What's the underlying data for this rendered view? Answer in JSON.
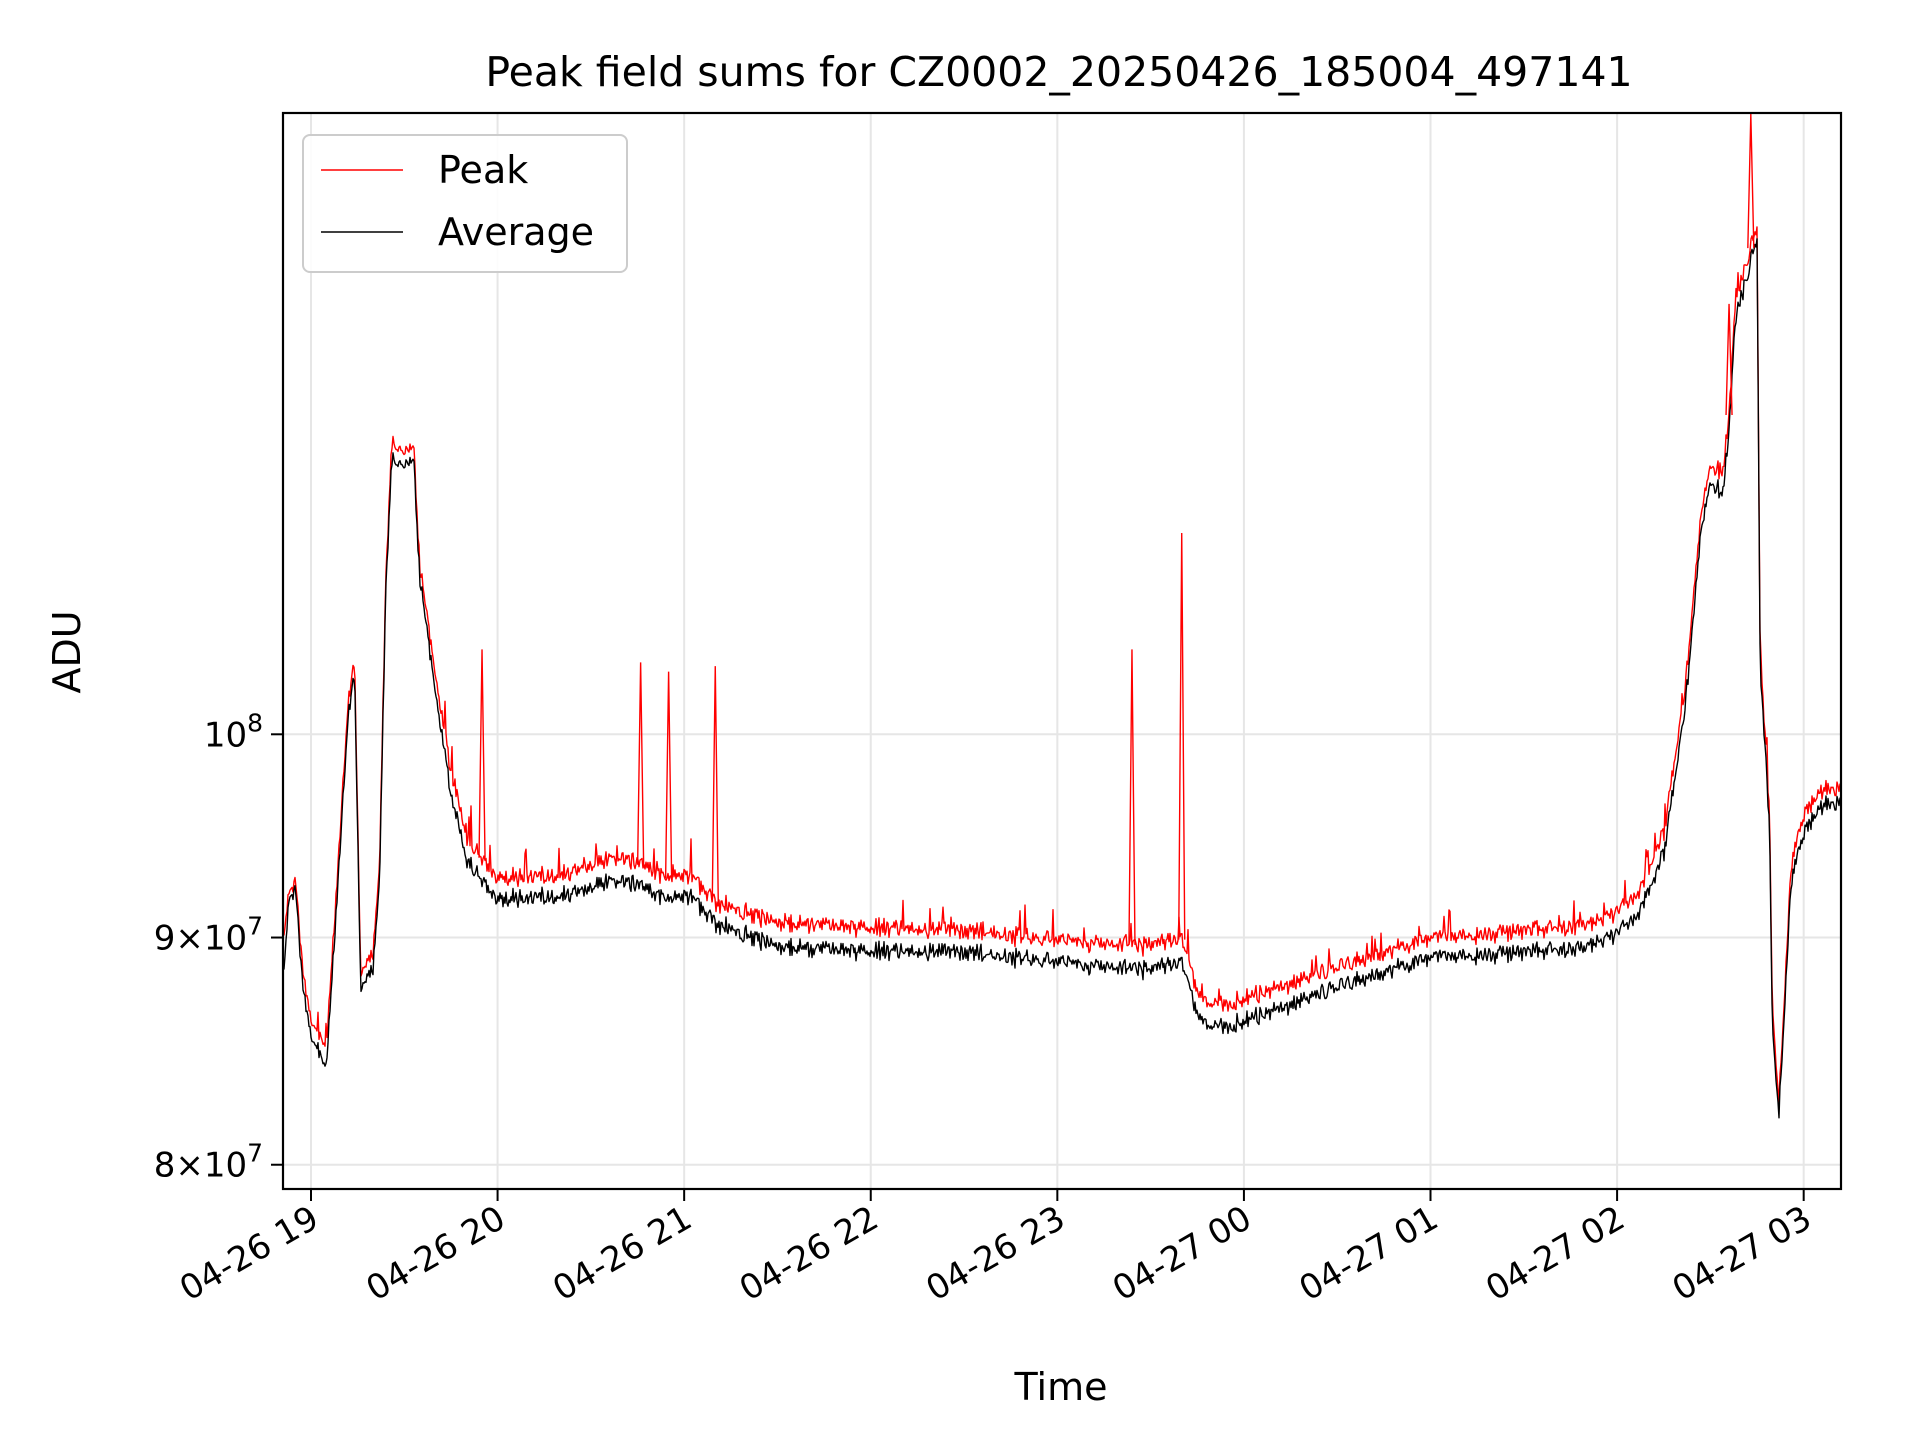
{
  "chart_data": {
    "type": "line",
    "title": "Peak field sums for CZ0002_20250426_185004_497141",
    "xlabel": "Time",
    "ylabel": "ADU",
    "yscale": "log",
    "ylim": [
      79000000,
      138000000
    ],
    "xlim": [
      "2025-04-26 18:51",
      "2025-04-27 03:12"
    ],
    "grid": true,
    "legend_position": "upper left",
    "x_ticks": [
      {
        "t": "2025-04-26 19:00",
        "label": "04-26 19"
      },
      {
        "t": "2025-04-26 20:00",
        "label": "04-26 20"
      },
      {
        "t": "2025-04-26 21:00",
        "label": "04-26 21"
      },
      {
        "t": "2025-04-26 22:00",
        "label": "04-26 22"
      },
      {
        "t": "2025-04-26 23:00",
        "label": "04-26 23"
      },
      {
        "t": "2025-04-27 00:00",
        "label": "04-27 00"
      },
      {
        "t": "2025-04-27 01:00",
        "label": "04-27 01"
      },
      {
        "t": "2025-04-27 02:00",
        "label": "04-27 02"
      },
      {
        "t": "2025-04-27 03:00",
        "label": "04-27 03"
      }
    ],
    "y_ticks": [
      {
        "value": 80000000,
        "base": "8×10",
        "exp": "7"
      },
      {
        "value": 90000000,
        "base": "9×10",
        "exp": "7"
      },
      {
        "value": 100000000,
        "base": "10",
        "exp": "8"
      }
    ],
    "series": [
      {
        "name": "Peak",
        "color": "#ff0000",
        "points": [
          [
            "2025-04-26 18:51",
            89800000
          ],
          [
            "2025-04-26 18:53",
            92300000
          ],
          [
            "2025-04-26 18:55",
            92700000
          ],
          [
            "2025-04-26 18:57",
            89000000
          ],
          [
            "2025-04-26 19:00",
            86200000
          ],
          [
            "2025-04-26 19:05",
            85200000
          ],
          [
            "2025-04-26 19:08",
            91800000
          ],
          [
            "2025-04-26 19:12",
            101900000
          ],
          [
            "2025-04-26 19:14",
            104000000
          ],
          [
            "2025-04-26 19:16",
            88200000
          ],
          [
            "2025-04-26 19:20",
            89200000
          ],
          [
            "2025-04-26 19:22",
            93200000
          ],
          [
            "2025-04-26 19:24",
            108100000
          ],
          [
            "2025-04-26 19:26",
            116500000
          ],
          [
            "2025-04-26 19:30",
            115800000
          ],
          [
            "2025-04-26 19:33",
            116100000
          ],
          [
            "2025-04-26 19:35",
            109100000
          ],
          [
            "2025-04-26 19:40",
            103100000
          ],
          [
            "2025-04-26 19:45",
            98200000
          ],
          [
            "2025-04-26 19:50",
            94800000
          ],
          [
            "2025-04-26 20:00",
            92800000
          ],
          [
            "2025-04-26 20:20",
            93000000
          ],
          [
            "2025-04-26 20:40",
            93900000
          ],
          [
            "2025-04-26 20:55",
            92800000
          ],
          [
            "2025-04-26 21:00",
            93200000
          ],
          [
            "2025-04-26 21:10",
            91700000
          ],
          [
            "2025-04-26 21:30",
            90600000
          ],
          [
            "2025-04-26 22:00",
            90500000
          ],
          [
            "2025-04-26 22:30",
            90300000
          ],
          [
            "2025-04-26 23:00",
            89900000
          ],
          [
            "2025-04-26 23:30",
            89600000
          ],
          [
            "2025-04-26 23:40",
            89900000
          ],
          [
            "2025-04-26 23:45",
            87400000
          ],
          [
            "2025-04-26 23:50",
            86900000
          ],
          [
            "2025-04-27 00:00",
            87200000
          ],
          [
            "2025-04-27 00:30",
            88600000
          ],
          [
            "2025-04-27 01:00",
            90000000
          ],
          [
            "2025-04-27 01:30",
            90300000
          ],
          [
            "2025-04-27 01:50",
            90500000
          ],
          [
            "2025-04-27 02:05",
            91600000
          ],
          [
            "2025-04-27 02:15",
            95000000
          ],
          [
            "2025-04-27 02:22",
            102500000
          ],
          [
            "2025-04-27 02:27",
            112200000
          ],
          [
            "2025-04-27 02:30",
            115000000
          ],
          [
            "2025-04-27 02:34",
            114500000
          ],
          [
            "2025-04-27 02:36",
            118000000
          ],
          [
            "2025-04-27 02:38",
            125000000
          ],
          [
            "2025-04-27 02:42",
            128000000
          ],
          [
            "2025-04-27 02:45",
            130000000
          ],
          [
            "2025-04-27 02:46",
            104500000
          ],
          [
            "2025-04-27 02:49",
            96000000
          ],
          [
            "2025-04-27 02:50",
            86600000
          ],
          [
            "2025-04-27 02:52",
            82500000
          ],
          [
            "2025-04-27 02:56",
            93500000
          ],
          [
            "2025-04-27 03:00",
            95900000
          ],
          [
            "2025-04-27 03:05",
            97000000
          ],
          [
            "2025-04-27 03:12",
            97400000
          ]
        ]
      },
      {
        "name": "Average",
        "color": "#000000",
        "points": [
          [
            "2025-04-26 18:51",
            88000000
          ],
          [
            "2025-04-26 18:53",
            92000000
          ],
          [
            "2025-04-26 18:55",
            92300000
          ],
          [
            "2025-04-26 18:57",
            88300000
          ],
          [
            "2025-04-26 19:00",
            85500000
          ],
          [
            "2025-04-26 19:05",
            84300000
          ],
          [
            "2025-04-26 19:08",
            91000000
          ],
          [
            "2025-04-26 19:12",
            101200000
          ],
          [
            "2025-04-26 19:14",
            103300000
          ],
          [
            "2025-04-26 19:16",
            87500000
          ],
          [
            "2025-04-26 19:20",
            88500000
          ],
          [
            "2025-04-26 19:22",
            92500000
          ],
          [
            "2025-04-26 19:24",
            107500000
          ],
          [
            "2025-04-26 19:26",
            115500000
          ],
          [
            "2025-04-26 19:30",
            115000000
          ],
          [
            "2025-04-26 19:33",
            115300000
          ],
          [
            "2025-04-26 19:35",
            108400000
          ],
          [
            "2025-04-26 19:40",
            102200000
          ],
          [
            "2025-04-26 19:45",
            97100000
          ],
          [
            "2025-04-26 19:50",
            93700000
          ],
          [
            "2025-04-26 20:00",
            91800000
          ],
          [
            "2025-04-26 20:20",
            92000000
          ],
          [
            "2025-04-26 20:40",
            92800000
          ],
          [
            "2025-04-26 20:55",
            91800000
          ],
          [
            "2025-04-26 21:00",
            92200000
          ],
          [
            "2025-04-26 21:10",
            90700000
          ],
          [
            "2025-04-26 21:30",
            89500000
          ],
          [
            "2025-04-26 22:00",
            89400000
          ],
          [
            "2025-04-26 22:30",
            89300000
          ],
          [
            "2025-04-26 23:00",
            88900000
          ],
          [
            "2025-04-26 23:30",
            88500000
          ],
          [
            "2025-04-26 23:40",
            88800000
          ],
          [
            "2025-04-26 23:45",
            86400000
          ],
          [
            "2025-04-26 23:50",
            85900000
          ],
          [
            "2025-04-27 00:00",
            86200000
          ],
          [
            "2025-04-27 00:30",
            87700000
          ],
          [
            "2025-04-27 01:00",
            89100000
          ],
          [
            "2025-04-27 01:30",
            89300000
          ],
          [
            "2025-04-27 01:50",
            89500000
          ],
          [
            "2025-04-27 02:05",
            90600000
          ],
          [
            "2025-04-27 02:15",
            94000000
          ],
          [
            "2025-04-27 02:22",
            101500000
          ],
          [
            "2025-04-27 02:27",
            111300000
          ],
          [
            "2025-04-27 02:30",
            114000000
          ],
          [
            "2025-04-27 02:34",
            113300000
          ],
          [
            "2025-04-27 02:36",
            117000000
          ],
          [
            "2025-04-27 02:38",
            124000000
          ],
          [
            "2025-04-27 02:42",
            127000000
          ],
          [
            "2025-04-27 02:45",
            129200000
          ],
          [
            "2025-04-27 02:46",
            103800000
          ],
          [
            "2025-04-27 02:49",
            95300000
          ],
          [
            "2025-04-27 02:50",
            85700000
          ],
          [
            "2025-04-27 02:52",
            82000000
          ],
          [
            "2025-04-27 02:56",
            92700000
          ],
          [
            "2025-04-27 03:00",
            95000000
          ],
          [
            "2025-04-27 03:05",
            96200000
          ],
          [
            "2025-04-27 03:12",
            96700000
          ]
        ]
      }
    ],
    "annotations": [
      {
        "series": "Peak",
        "kind": "spike",
        "x": "2025-04-27 02:43",
        "y": 138000000
      },
      {
        "series": "Peak",
        "kind": "spike",
        "x": "2025-04-26 23:40",
        "y": 111000000
      },
      {
        "series": "Peak",
        "kind": "spike",
        "x": "2025-04-26 23:24",
        "y": 104500000
      },
      {
        "series": "Peak",
        "kind": "spike",
        "x": "2025-04-26 20:55",
        "y": 103300000
      },
      {
        "series": "Peak",
        "kind": "spike",
        "x": "2025-04-26 21:10",
        "y": 103600000
      },
      {
        "series": "Peak",
        "kind": "spike",
        "x": "2025-04-26 20:46",
        "y": 103800000
      },
      {
        "series": "Peak",
        "kind": "spike",
        "x": "2025-04-26 19:55",
        "y": 104500000
      },
      {
        "series": "Peak",
        "kind": "spike",
        "x": "2025-04-27 02:36",
        "y": 125000000
      }
    ]
  }
}
